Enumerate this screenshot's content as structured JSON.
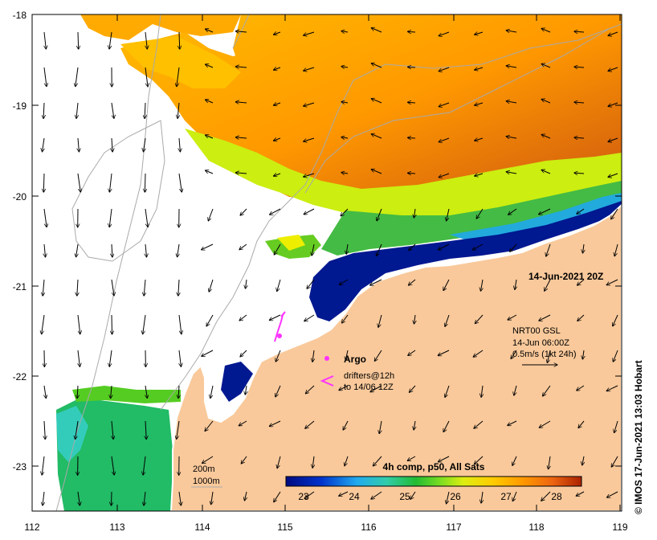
{
  "map": {
    "date_label": "14-Jun-2021 20Z",
    "composite_label": "4h comp, p50, All Sats",
    "credit": "©  IMOS 17-Jun-2021 13:03 Hobart",
    "current_legend": {
      "title": "NRT00 GSL",
      "time": "14-Jun 06:00Z",
      "scale": "0.5m/s (1kt 24h)"
    },
    "argo_label": "Argo",
    "drifters_line1": "drifters@12h",
    "drifters_line2": "to 14/06 12Z",
    "bathymetry_200": "200m",
    "bathymetry_1000": "1000m",
    "lon_ticks": [
      "112",
      "113",
      "114",
      "115",
      "116",
      "117",
      "118",
      "119"
    ],
    "lat_ticks": [
      "-18",
      "-19",
      "-20",
      "-21",
      "-22",
      "-23"
    ],
    "colorbar_ticks": [
      "23",
      "24",
      "25",
      "26",
      "27",
      "28"
    ],
    "colors": {
      "land": "#f9c99b",
      "sst_low": "#001090",
      "sst_high": "#c03010",
      "drifter": "#ff33ff"
    }
  }
}
